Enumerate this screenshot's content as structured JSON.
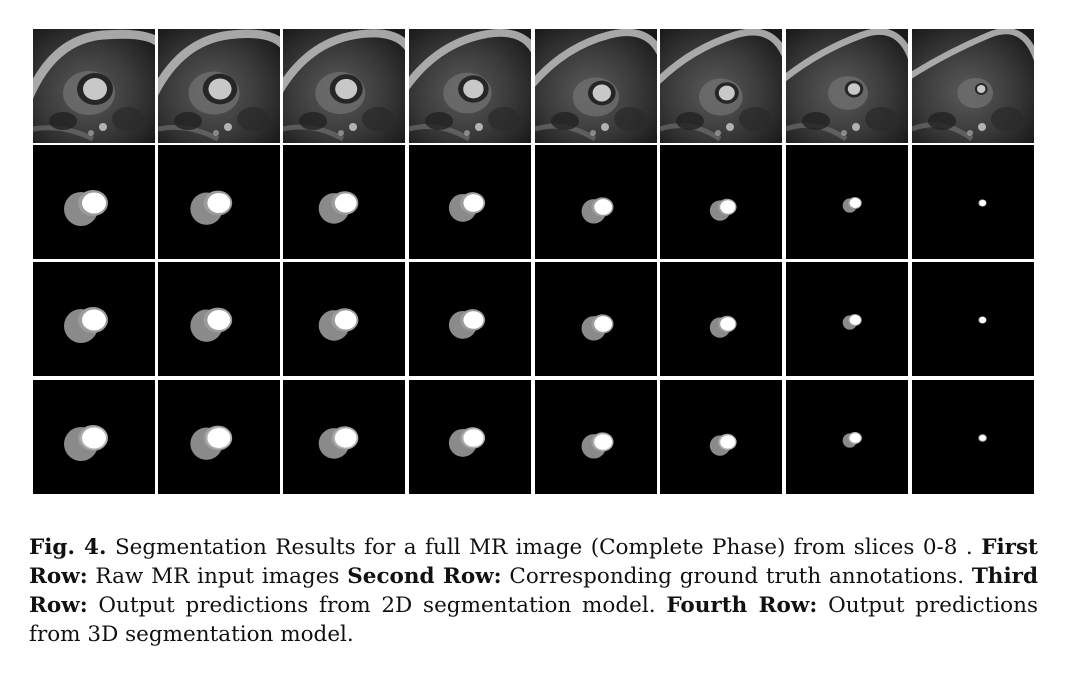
{
  "figure": {
    "rows": [
      {
        "name": "raw-mr",
        "kind": "mri"
      },
      {
        "name": "ground-truth",
        "kind": "mask"
      },
      {
        "name": "pred-2d",
        "kind": "mask"
      },
      {
        "name": "pred-3d",
        "kind": "mask"
      }
    ],
    "columns": 8,
    "colors": {
      "background": "#ffffff",
      "mask_bg": "#000000",
      "mask_gray": "#8a8a8a",
      "mask_white": "#ffffff"
    }
  },
  "caption": {
    "label": "Fig. 4.",
    "text1": " Segmentation Results for a full MR image (Complete Phase) from slices 0-8 . ",
    "bold1": "First Row:",
    "text2": " Raw MR input images ",
    "bold2": "Second Row:",
    "text3": " Corresponding ground truth annotations. ",
    "bold3": "Third Row:",
    "text4": " Output predictions from 2D segmentation model. ",
    "bold4": "Fourth Row:",
    "text5": " Output predictions from 3D segmentation model."
  }
}
